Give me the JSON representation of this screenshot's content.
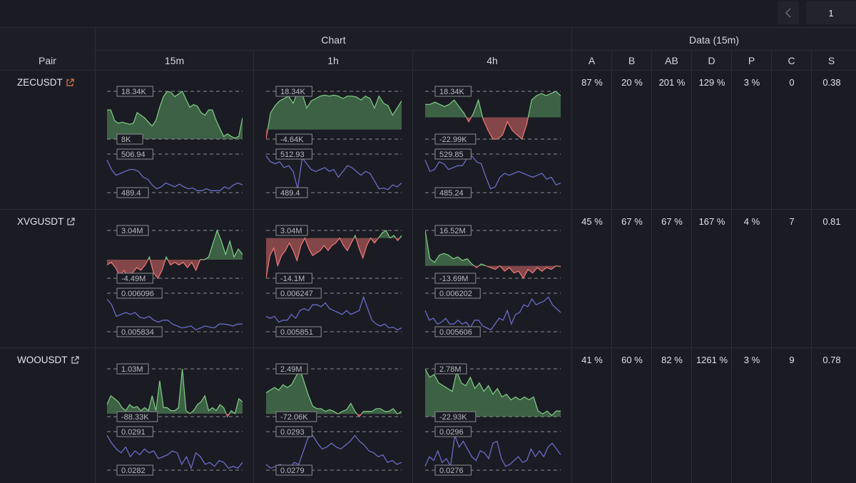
{
  "pager": {
    "page": "1"
  },
  "header": {
    "group_chart": "Chart",
    "group_data": "Data (15m)",
    "col_pair": "Pair",
    "timeframes": [
      "15m",
      "1h",
      "4h"
    ],
    "metrics": [
      "A",
      "B",
      "AB",
      "D",
      "P",
      "C",
      "S"
    ]
  },
  "colors": {
    "positive": "#5a9b62",
    "negative": "#d86a6a",
    "price_line": "#6a6ac8",
    "zec_icon": "#e07c4c"
  },
  "rows": [
    {
      "pair": "ZECUSDT",
      "values": [
        "87 %",
        "20 %",
        "201 %",
        "129 %",
        "3 %",
        "0",
        "0.38"
      ],
      "charts": [
        {
          "vol_top": "18.34K",
          "vol_bot": "8K",
          "price_top": "506.94",
          "price_bot": "489.4",
          "vol": [
            0.55,
            0.55,
            0.35,
            0.3,
            0.32,
            0.3,
            0.28,
            0.3,
            0.5,
            0.45,
            0.4,
            0.32,
            0.25,
            0.35,
            0.6,
            0.8,
            0.9,
            0.88,
            0.8,
            0.85,
            0.9,
            0.75,
            0.6,
            0.65,
            0.62,
            0.5,
            0.45,
            0.55,
            0.55,
            0.35,
            0.2,
            0.05,
            0.1,
            0.05,
            0.02,
            0.05,
            0.4
          ],
          "price": [
            0.85,
            0.6,
            0.45,
            0.5,
            0.55,
            0.6,
            0.6,
            0.55,
            0.4,
            0.35,
            0.2,
            0.1,
            0.15,
            0.25,
            0.2,
            0.15,
            0.22,
            0.15,
            0.1,
            0.12,
            0.05,
            0.05,
            0.1,
            0.05,
            0.05,
            0.05,
            0.15,
            0.1,
            0.2,
            0.25,
            0.2
          ]
        },
        {
          "vol_top": "18.34K",
          "vol_bot": "-4.64K",
          "price_top": "512.93",
          "price_bot": "489.4",
          "vol": [
            -0.2,
            0.35,
            0.5,
            0.6,
            0.65,
            0.7,
            0.55,
            0.8,
            0.75,
            0.45,
            0.6,
            0.65,
            0.7,
            0.72,
            0.7,
            0.72,
            0.7,
            0.65,
            0.7,
            0.7,
            0.68,
            0.62,
            0.7,
            0.65,
            0.45,
            0.7,
            0.55,
            0.5,
            0.3,
            0.45,
            0.6
          ],
          "price": [
            0.95,
            0.8,
            0.75,
            0.8,
            0.65,
            0.7,
            0.55,
            0.1,
            0.9,
            0.75,
            0.6,
            0.55,
            0.6,
            0.65,
            0.55,
            0.6,
            0.4,
            0.55,
            0.7,
            0.65,
            0.55,
            0.45,
            0.55,
            0.5,
            0.3,
            0.1,
            0.12,
            0.08,
            0.2,
            0.15,
            0.25
          ]
        },
        {
          "vol_top": "18.34K",
          "vol_bot": "-22.99K",
          "price_top": "529.85",
          "price_bot": "485.24",
          "vol": [
            0.3,
            0.3,
            0.35,
            0.3,
            0.25,
            0.3,
            0.4,
            0.25,
            0.1,
            -0.1,
            0.1,
            0.4,
            -0.05,
            -0.3,
            -0.5,
            -0.5,
            -0.4,
            -0.1,
            -0.3,
            -0.4,
            -0.5,
            -0.15,
            0.4,
            0.5,
            0.55,
            0.5,
            0.55,
            0.6,
            0.5
          ],
          "price": [
            0.85,
            0.55,
            0.6,
            0.8,
            0.75,
            0.6,
            0.65,
            0.7,
            0.7,
            0.9,
            0.95,
            0.8,
            0.75,
            0.4,
            0.1,
            0.15,
            0.4,
            0.5,
            0.45,
            0.5,
            0.55,
            0.5,
            0.45,
            0.4,
            0.45,
            0.5,
            0.35,
            0.4,
            0.2,
            0.25
          ]
        }
      ]
    },
    {
      "pair": "XVGUSDT",
      "values": [
        "45 %",
        "67 %",
        "67 %",
        "167 %",
        "4 %",
        "7",
        "0.81"
      ],
      "charts": [
        {
          "vol_top": "3.04M",
          "vol_bot": "-4.49M",
          "price_top": "0.006096",
          "price_bot": "0.005834",
          "vol": [
            -0.1,
            -0.05,
            -0.15,
            -0.3,
            -0.2,
            -0.35,
            -0.25,
            -0.15,
            -0.2,
            -0.1,
            0.05,
            -0.25,
            -0.35,
            -0.2,
            0.05,
            -0.1,
            -0.05,
            -0.1,
            -0.05,
            -0.15,
            -0.05,
            -0.2,
            0.0,
            0.0,
            0.05,
            0.3,
            0.55,
            0.35,
            0.1,
            0.35,
            0.05,
            0.2,
            0.1
          ],
          "price": [
            0.85,
            0.7,
            0.4,
            0.45,
            0.5,
            0.45,
            0.5,
            0.38,
            0.35,
            0.4,
            0.3,
            0.25,
            0.3,
            0.3,
            0.2,
            0.15,
            0.1,
            0.12,
            0.15,
            0.05,
            0.1,
            0.15,
            0.12,
            0.1,
            0.2,
            0.2,
            0.18,
            0.15,
            0.2,
            0.2
          ]
        },
        {
          "vol_top": "3.04M",
          "vol_bot": "-14.1M",
          "price_top": "0.006247",
          "price_bot": "0.005851",
          "vol": [
            -0.8,
            -0.35,
            -0.2,
            -0.55,
            -0.35,
            -0.25,
            -0.1,
            -0.25,
            -0.45,
            -0.15,
            0.0,
            -0.2,
            -0.35,
            -0.3,
            -0.25,
            -0.15,
            -0.25,
            -0.15,
            -0.1,
            0.0,
            -0.15,
            -0.25,
            -0.1,
            0.05,
            -0.2,
            -0.4,
            -0.15,
            0.0,
            -0.1,
            0.0,
            0.1,
            0.15,
            0.0,
            0.05,
            -0.05,
            0.05
          ],
          "price": [
            0.4,
            0.35,
            0.4,
            0.25,
            0.3,
            0.3,
            0.45,
            0.35,
            0.55,
            0.6,
            0.55,
            0.7,
            0.7,
            0.65,
            0.75,
            0.6,
            0.55,
            0.5,
            0.45,
            0.55,
            0.45,
            0.5,
            0.55,
            0.9,
            0.6,
            0.3,
            0.2,
            0.15,
            0.2,
            0.1,
            0.12,
            0.05,
            0.1
          ]
        },
        {
          "vol_top": "16.52M",
          "vol_bot": "-13.69M",
          "price_top": "0.006202",
          "price_bot": "0.005606",
          "vol": [
            1.0,
            0.2,
            0.1,
            0.3,
            0.35,
            0.3,
            0.2,
            0.25,
            0.15,
            0.2,
            0.05,
            -0.05,
            0.05,
            0.0,
            -0.05,
            -0.1,
            0.0,
            -0.15,
            -0.05,
            -0.2,
            -0.15,
            -0.35,
            -0.1,
            -0.2,
            -0.05,
            -0.15,
            -0.05,
            -0.1,
            0.0,
            -0.02
          ],
          "price": [
            0.55,
            0.3,
            0.35,
            0.2,
            0.25,
            0.35,
            0.2,
            0.2,
            0.3,
            0.2,
            0.25,
            0.1,
            0.3,
            0.3,
            0.15,
            0.1,
            0.05,
            0.2,
            0.35,
            0.3,
            0.55,
            0.2,
            0.45,
            0.5,
            0.7,
            0.65,
            0.85,
            0.7,
            0.75,
            0.8,
            0.9,
            0.7,
            0.6,
            0.5
          ]
        }
      ]
    },
    {
      "pair": "WOOUSDT",
      "values": [
        "41 %",
        "60 %",
        "82 %",
        "1261 %",
        "3 %",
        "9",
        "0.78"
      ],
      "charts": [
        {
          "vol_top": "1.03M",
          "vol_bot": "-88.33K",
          "price_top": "0.0291",
          "price_bot": "0.0282",
          "vol": [
            0.15,
            0.3,
            0.25,
            0.2,
            0.1,
            0.05,
            0.15,
            0.1,
            0.12,
            0.05,
            0.1,
            0.05,
            0.3,
            0.05,
            0.55,
            0.1,
            0.1,
            0.05,
            0.05,
            0.1,
            0.75,
            0.05,
            0.0,
            0.05,
            0.15,
            0.2,
            0.3,
            0.05,
            0.1,
            0.05,
            0.15,
            0.1,
            -0.05,
            0.05,
            0.0,
            0.25,
            0.2
          ],
          "price": [
            0.9,
            0.7,
            0.55,
            0.45,
            0.6,
            0.35,
            0.5,
            0.4,
            0.55,
            0.45,
            0.5,
            0.3,
            0.35,
            0.4,
            0.5,
            0.45,
            0.15,
            0.35,
            0.05,
            0.45,
            0.35,
            0.15,
            0.2,
            0.1,
            0.25,
            0.2,
            0.05,
            0.1,
            0.05,
            0.2
          ]
        },
        {
          "vol_top": "2.49M",
          "vol_bot": "-72.06K",
          "price_top": "0.0293",
          "price_bot": "0.0279",
          "vol": [
            0.4,
            0.45,
            0.5,
            0.45,
            0.55,
            0.5,
            0.55,
            0.7,
            0.85,
            0.6,
            0.35,
            0.15,
            0.1,
            0.1,
            0.05,
            0.08,
            0.05,
            0.0,
            0.05,
            0.08,
            0.2,
            0.05,
            -0.05,
            0.05,
            0.05,
            0.05,
            0.1,
            0.1,
            0.05,
            0.05,
            0.1,
            0.0,
            0.05
          ],
          "price": [
            0.15,
            0.05,
            0.1,
            0.15,
            0.1,
            0.05,
            0.2,
            0.15,
            0.5,
            0.85,
            0.9,
            0.7,
            0.55,
            0.6,
            0.7,
            0.6,
            0.55,
            0.65,
            0.75,
            0.9,
            0.75,
            0.65,
            0.5,
            0.45,
            0.35,
            0.4,
            0.2,
            0.25,
            0.15,
            0.2
          ]
        },
        {
          "vol_top": "2.78M",
          "vol_bot": "-22.93K",
          "price_top": "0.0296",
          "price_bot": "0.0276",
          "vol": [
            0.85,
            0.7,
            0.75,
            0.6,
            0.55,
            0.5,
            0.45,
            0.8,
            0.6,
            0.55,
            0.7,
            0.5,
            0.6,
            0.45,
            0.55,
            0.4,
            0.5,
            0.35,
            0.4,
            0.3,
            0.35,
            0.3,
            0.35,
            0.3,
            0.35,
            0.1,
            0.05,
            0.1,
            0.02,
            0.1,
            0.1
          ],
          "price": [
            0.1,
            0.35,
            0.25,
            0.5,
            0.2,
            0.3,
            0.1,
            0.9,
            0.6,
            0.75,
            0.55,
            0.35,
            0.25,
            0.5,
            0.45,
            0.3,
            0.7,
            0.75,
            0.3,
            0.1,
            0.15,
            0.25,
            0.35,
            0.2,
            0.25,
            0.55,
            0.35,
            0.5,
            0.35,
            0.6,
            0.7,
            0.55,
            0.4
          ]
        }
      ]
    }
  ]
}
